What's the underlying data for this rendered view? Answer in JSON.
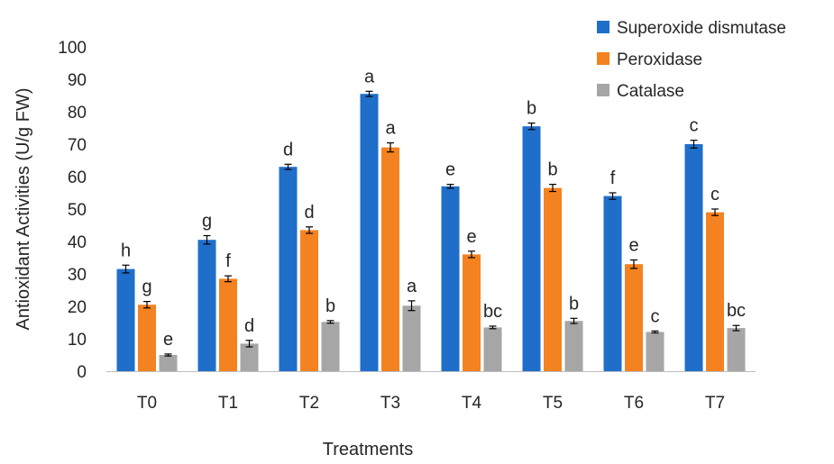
{
  "chart_data": {
    "type": "bar",
    "xlabel": "Treatments",
    "ylabel": "Antioxidant  Activities (U/g FW)",
    "ylim": [
      0,
      100
    ],
    "yticks": [
      0,
      10,
      20,
      30,
      40,
      50,
      60,
      70,
      80,
      90,
      100
    ],
    "grid": false,
    "legend_position": "top-right",
    "categories": [
      "T0",
      "T1",
      "T2",
      "T3",
      "T4",
      "T5",
      "T6",
      "T7"
    ],
    "series": [
      {
        "name": "Superoxide dismutase",
        "color": "#1f6fca",
        "values": [
          31.5,
          40.5,
          63,
          85.5,
          57,
          75.5,
          54,
          70
        ],
        "errors": [
          1.2,
          1.3,
          0.8,
          0.8,
          0.6,
          1.0,
          1.0,
          1.2
        ],
        "letters": [
          "h",
          "g",
          "d",
          "a",
          "e",
          "b",
          "f",
          "c"
        ]
      },
      {
        "name": "Peroxidase",
        "color": "#f58220",
        "values": [
          20.5,
          28.5,
          43.5,
          69,
          36,
          56.5,
          33,
          49
        ],
        "errors": [
          1.0,
          0.9,
          1.0,
          1.4,
          1.0,
          1.1,
          1.3,
          1.0
        ],
        "letters": [
          "g",
          "f",
          "d",
          "a",
          "e",
          "b",
          "e",
          "c"
        ]
      },
      {
        "name": "Catalase",
        "color": "#a6a6a6",
        "values": [
          5,
          8.5,
          15.2,
          20.2,
          13.5,
          15.5,
          12.1,
          13.3
        ],
        "errors": [
          0.3,
          1.0,
          0.4,
          1.5,
          0.4,
          0.8,
          0.3,
          0.8
        ],
        "letters": [
          "e",
          "d",
          "b",
          "a",
          "bc",
          "b",
          "c",
          "bc"
        ]
      }
    ]
  }
}
